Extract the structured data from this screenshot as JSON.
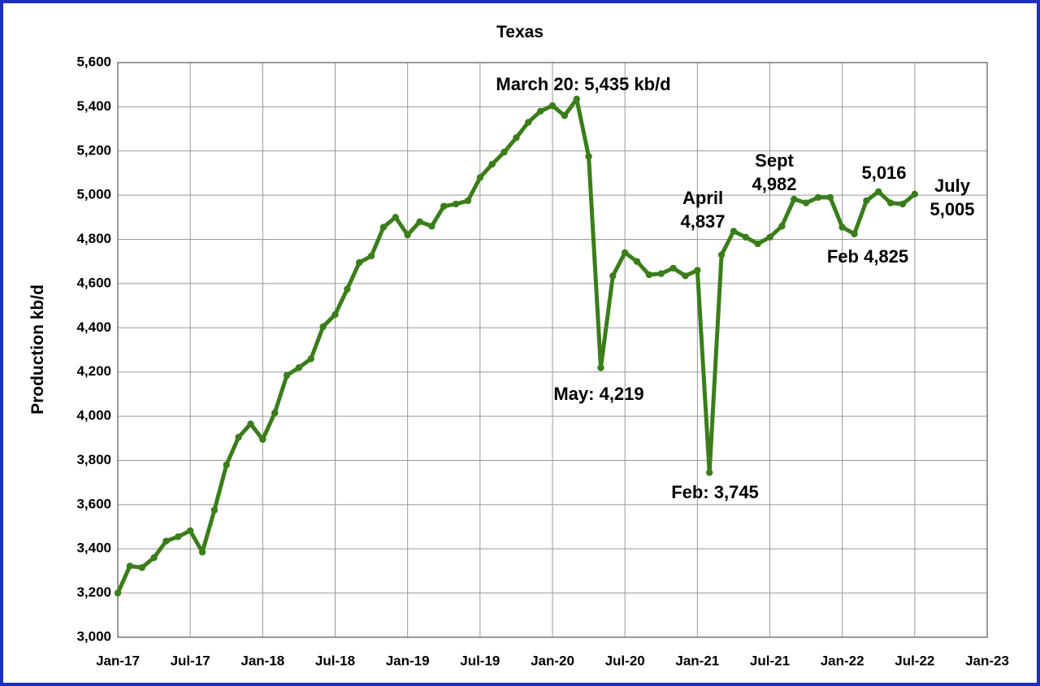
{
  "chart_data": {
    "type": "line",
    "title": "Texas",
    "y_label": "Production kb/d",
    "categories": [
      "Jan-17",
      null,
      null,
      null,
      null,
      null,
      "Jul-17",
      null,
      null,
      null,
      null,
      null,
      "Jan-18",
      null,
      null,
      null,
      null,
      null,
      "Jul-18",
      null,
      null,
      null,
      null,
      null,
      "Jan-19",
      null,
      null,
      null,
      null,
      null,
      "Jul-19",
      null,
      null,
      null,
      null,
      null,
      "Jan-20",
      null,
      null,
      null,
      null,
      null,
      "Jul-20",
      null,
      null,
      null,
      null,
      null,
      "Jan-21",
      null,
      null,
      null,
      null,
      null,
      "Jul-21",
      null,
      null,
      null,
      null,
      null,
      "Jan-22",
      null,
      null,
      null,
      null,
      null,
      "Jul-22",
      null,
      null,
      null,
      null,
      null,
      "Jan-23"
    ],
    "series": [
      {
        "color": "#3a7d1a",
        "values": [
          3200,
          3322,
          3315,
          3360,
          3435,
          3455,
          3482,
          3385,
          3575,
          3780,
          3905,
          3965,
          3895,
          4015,
          4185,
          4220,
          4260,
          4405,
          4460,
          4575,
          4695,
          4725,
          4855,
          4900,
          4820,
          4880,
          4860,
          4950,
          4960,
          4975,
          5080,
          5140,
          5195,
          5260,
          5330,
          5380,
          5405,
          5360,
          5435,
          5175,
          4219,
          4635,
          4740,
          4700,
          4640,
          4645,
          4670,
          4635,
          4660,
          3745,
          4730,
          4837,
          4810,
          4780,
          4810,
          4860,
          4982,
          4965,
          4990,
          4990,
          4855,
          4825,
          4975,
          5016,
          4965,
          4960,
          5005,
          null,
          null,
          null,
          null,
          null,
          null
        ]
      }
    ],
    "ylim": [
      3000,
      5600
    ],
    "yticks": [
      {
        "value": 3000,
        "label": "3,000"
      },
      {
        "value": 3200,
        "label": "3,200"
      },
      {
        "value": 3400,
        "label": "3,400"
      },
      {
        "value": 3600,
        "label": "3,600"
      },
      {
        "value": 3800,
        "label": "3,800"
      },
      {
        "value": 4000,
        "label": "4,000"
      },
      {
        "value": 4200,
        "label": "4,200"
      },
      {
        "value": 4400,
        "label": "4,400"
      },
      {
        "value": 4600,
        "label": "4,600"
      },
      {
        "value": 4800,
        "label": "4,800"
      },
      {
        "value": 5000,
        "label": "5,000"
      },
      {
        "value": 5200,
        "label": "5,200"
      },
      {
        "value": 5400,
        "label": "5,400"
      },
      {
        "value": 5600,
        "label": "5,600"
      }
    ],
    "grid": true,
    "annotations": [
      [
        "March 20: 5,435 kb/d"
      ],
      [
        "May: 4,219"
      ],
      [
        "Feb: 3,745"
      ],
      [
        "April",
        "4,837"
      ],
      [
        "Sept",
        "4,982"
      ],
      [
        "5,016"
      ],
      [
        "Feb 4,825"
      ],
      [
        "July",
        "5,005"
      ]
    ]
  }
}
